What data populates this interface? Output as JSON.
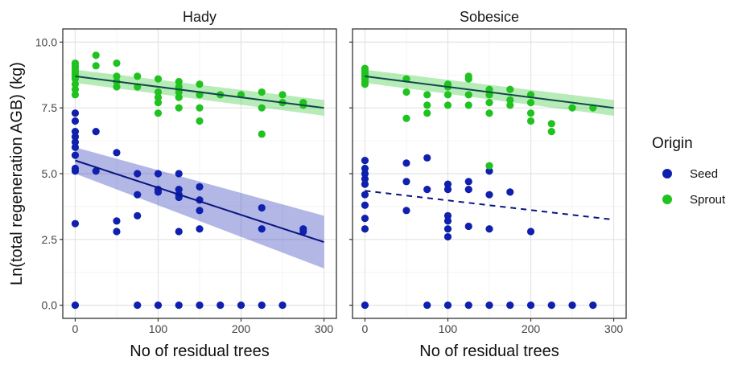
{
  "figure": {
    "ylabel": "Ln(total regeneration AGB) (kg)",
    "xlabel": "No of residual trees",
    "legend": {
      "title": "Origin",
      "position": "right",
      "items": [
        {
          "label": "Seed",
          "color": "#0f1fae"
        },
        {
          "label": "Sprout",
          "color": "#1fc21f"
        }
      ]
    }
  },
  "chart_data": [
    {
      "type": "scatter",
      "panel": "Hady",
      "title": "Hady",
      "xlabel": "No of residual trees",
      "ylabel": "Ln(total regeneration AGB) (kg)",
      "xlim": [
        -15,
        315
      ],
      "ylim": [
        -0.5,
        10.5
      ],
      "xticks": [
        0,
        100,
        200,
        300
      ],
      "yticks": [
        0.0,
        2.5,
        5.0,
        7.5,
        10.0
      ],
      "ytick_labels": [
        "0.0",
        "2.5",
        "5.0",
        "7.5",
        "10.0"
      ],
      "grid": true,
      "series": [
        {
          "name": "Seed",
          "color": "#0f1fae",
          "points": [
            [
              0,
              0
            ],
            [
              0,
              3.1
            ],
            [
              0,
              5.1
            ],
            [
              0,
              5.2
            ],
            [
              0,
              5.7
            ],
            [
              0,
              6.0
            ],
            [
              0,
              6.2
            ],
            [
              0,
              6.4
            ],
            [
              0,
              6.6
            ],
            [
              0,
              7.0
            ],
            [
              0,
              7.3
            ],
            [
              25,
              6.6
            ],
            [
              25,
              5.1
            ],
            [
              50,
              5.8
            ],
            [
              50,
              3.2
            ],
            [
              50,
              2.8
            ],
            [
              75,
              5.0
            ],
            [
              75,
              4.2
            ],
            [
              75,
              3.4
            ],
            [
              75,
              0
            ],
            [
              100,
              5.0
            ],
            [
              100,
              4.4
            ],
            [
              100,
              4.3
            ],
            [
              100,
              0
            ],
            [
              125,
              5.0
            ],
            [
              125,
              4.4
            ],
            [
              125,
              4.2
            ],
            [
              125,
              4.1
            ],
            [
              125,
              2.8
            ],
            [
              125,
              0
            ],
            [
              150,
              4.5
            ],
            [
              150,
              4.0
            ],
            [
              150,
              3.6
            ],
            [
              150,
              2.9
            ],
            [
              150,
              0
            ],
            [
              175,
              0
            ],
            [
              200,
              0
            ],
            [
              225,
              3.7
            ],
            [
              225,
              2.9
            ],
            [
              225,
              0
            ],
            [
              250,
              0
            ],
            [
              275,
              2.9
            ],
            [
              275,
              2.8
            ]
          ],
          "fit": {
            "x": [
              0,
              300
            ],
            "y": [
              5.5,
              2.4
            ],
            "lower": [
              5.0,
              1.4
            ],
            "upper": [
              6.0,
              3.4
            ],
            "linestyle": "solid"
          }
        },
        {
          "name": "Sprout",
          "color": "#1fc21f",
          "points": [
            [
              0,
              8.0
            ],
            [
              0,
              8.2
            ],
            [
              0,
              8.4
            ],
            [
              0,
              8.6
            ],
            [
              0,
              8.7
            ],
            [
              0,
              8.8
            ],
            [
              0,
              8.9
            ],
            [
              0,
              9.0
            ],
            [
              0,
              9.1
            ],
            [
              0,
              9.2
            ],
            [
              25,
              9.5
            ],
            [
              25,
              9.1
            ],
            [
              50,
              9.2
            ],
            [
              50,
              8.7
            ],
            [
              50,
              8.5
            ],
            [
              50,
              8.3
            ],
            [
              75,
              8.7
            ],
            [
              75,
              8.3
            ],
            [
              100,
              8.6
            ],
            [
              100,
              8.1
            ],
            [
              100,
              7.9
            ],
            [
              100,
              7.7
            ],
            [
              100,
              7.3
            ],
            [
              125,
              8.5
            ],
            [
              125,
              8.3
            ],
            [
              125,
              8.1
            ],
            [
              125,
              7.9
            ],
            [
              125,
              7.5
            ],
            [
              150,
              8.4
            ],
            [
              150,
              8.0
            ],
            [
              150,
              7.5
            ],
            [
              150,
              7.0
            ],
            [
              175,
              8.0
            ],
            [
              200,
              8.0
            ],
            [
              225,
              8.1
            ],
            [
              225,
              7.5
            ],
            [
              225,
              6.5
            ],
            [
              250,
              8.0
            ],
            [
              250,
              7.7
            ],
            [
              275,
              7.7
            ],
            [
              275,
              7.6
            ]
          ],
          "fit": {
            "x": [
              0,
              300
            ],
            "y": [
              8.7,
              7.5
            ],
            "lower": [
              8.45,
              7.2
            ],
            "upper": [
              8.95,
              7.8
            ],
            "linestyle": "solid"
          }
        }
      ]
    },
    {
      "type": "scatter",
      "panel": "Sobesice",
      "title": "Sobesice",
      "xlabel": "No of residual trees",
      "ylabel": "Ln(total regeneration AGB) (kg)",
      "xlim": [
        -15,
        315
      ],
      "ylim": [
        -0.5,
        10.5
      ],
      "xticks": [
        0,
        100,
        200,
        300
      ],
      "yticks": [
        0.0,
        2.5,
        5.0,
        7.5,
        10.0
      ],
      "grid": true,
      "series": [
        {
          "name": "Seed",
          "color": "#0f1fae",
          "points": [
            [
              0,
              0
            ],
            [
              0,
              2.9
            ],
            [
              0,
              3.3
            ],
            [
              0,
              3.8
            ],
            [
              0,
              4.2
            ],
            [
              0,
              4.6
            ],
            [
              0,
              4.8
            ],
            [
              0,
              5.0
            ],
            [
              0,
              5.2
            ],
            [
              0,
              5.5
            ],
            [
              50,
              5.4
            ],
            [
              50,
              4.7
            ],
            [
              50,
              3.6
            ],
            [
              75,
              5.6
            ],
            [
              75,
              4.4
            ],
            [
              75,
              0
            ],
            [
              100,
              4.6
            ],
            [
              100,
              4.4
            ],
            [
              100,
              3.4
            ],
            [
              100,
              3.2
            ],
            [
              100,
              2.9
            ],
            [
              100,
              2.6
            ],
            [
              100,
              0
            ],
            [
              125,
              4.7
            ],
            [
              125,
              4.4
            ],
            [
              125,
              3.0
            ],
            [
              125,
              0
            ],
            [
              150,
              5.1
            ],
            [
              150,
              4.2
            ],
            [
              150,
              2.9
            ],
            [
              150,
              0
            ],
            [
              175,
              4.3
            ],
            [
              175,
              0
            ],
            [
              200,
              2.8
            ],
            [
              200,
              0
            ],
            [
              225,
              0
            ],
            [
              250,
              0
            ],
            [
              275,
              0
            ]
          ],
          "fit": {
            "x": [
              0,
              300
            ],
            "y": [
              4.35,
              3.25
            ],
            "linestyle": "dashed"
          }
        },
        {
          "name": "Sprout",
          "color": "#1fc21f",
          "points": [
            [
              0,
              8.4
            ],
            [
              0,
              8.5
            ],
            [
              0,
              8.6
            ],
            [
              0,
              8.7
            ],
            [
              0,
              8.8
            ],
            [
              0,
              8.9
            ],
            [
              0,
              9.0
            ],
            [
              50,
              8.6
            ],
            [
              50,
              8.1
            ],
            [
              50,
              7.1
            ],
            [
              75,
              8.0
            ],
            [
              75,
              7.6
            ],
            [
              75,
              7.3
            ],
            [
              100,
              8.4
            ],
            [
              100,
              8.3
            ],
            [
              100,
              8.0
            ],
            [
              100,
              7.6
            ],
            [
              125,
              8.7
            ],
            [
              125,
              8.6
            ],
            [
              125,
              8.0
            ],
            [
              125,
              7.6
            ],
            [
              150,
              8.2
            ],
            [
              150,
              8.0
            ],
            [
              150,
              7.7
            ],
            [
              150,
              7.3
            ],
            [
              150,
              5.3
            ],
            [
              175,
              8.2
            ],
            [
              175,
              7.8
            ],
            [
              175,
              7.6
            ],
            [
              200,
              8.0
            ],
            [
              200,
              7.7
            ],
            [
              200,
              7.3
            ],
            [
              200,
              7.0
            ],
            [
              225,
              6.9
            ],
            [
              225,
              6.6
            ],
            [
              250,
              7.5
            ],
            [
              275,
              7.5
            ]
          ],
          "fit": {
            "x": [
              0,
              300
            ],
            "y": [
              8.7,
              7.5
            ],
            "lower": [
              8.45,
              7.2
            ],
            "upper": [
              8.95,
              7.8
            ],
            "linestyle": "solid"
          }
        }
      ]
    }
  ]
}
